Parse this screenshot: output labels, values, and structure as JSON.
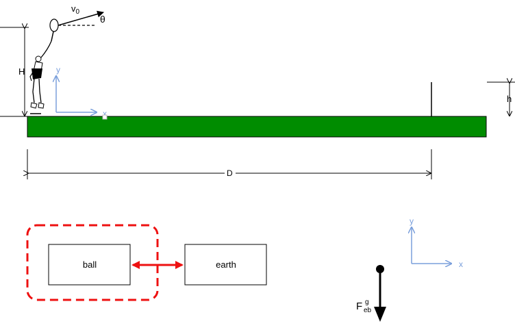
{
  "scene": {
    "velocity_label": "v",
    "velocity_sub": "0",
    "angle_label": "θ",
    "height_label": "H",
    "net_height_label": "h",
    "distance_label": "D",
    "axis_x_label": "x",
    "axis_y_label": "y"
  },
  "system": {
    "box_ball_label": "ball",
    "box_earth_label": "earth"
  },
  "axes2": {
    "x_label": "x",
    "y_label": "y"
  },
  "force": {
    "symbol": "F",
    "superscript": "g",
    "subscript": "eb"
  },
  "colors": {
    "court_fill": "#008c00",
    "axis_color": "#7a9fdb",
    "system_boundary": "#ee1111",
    "interaction_arrow": "#ee1111"
  }
}
